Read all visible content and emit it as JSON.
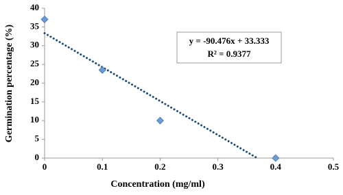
{
  "chart_data": {
    "type": "scatter",
    "xlabel": "Concentration (mg/ml)",
    "ylabel": "Germination percentage (%)",
    "series": [
      {
        "x": [
          0,
          0.1,
          0.2,
          0.4
        ],
        "values": [
          37,
          23.5,
          10,
          0
        ],
        "color": "#6b9bd2"
      }
    ],
    "trendline": {
      "x": [
        0,
        0.368
      ],
      "values": [
        33.333,
        0
      ],
      "color": "#1f4e79"
    },
    "annotations": [
      "y = -90.476x + 33.333",
      "R² = 0.9377"
    ],
    "xlim": [
      0,
      0.5
    ],
    "xticks": [
      0,
      0.1,
      0.2,
      0.3,
      0.4,
      0.5
    ],
    "ylim": [
      0,
      40
    ],
    "yticks": [
      0,
      5,
      10,
      15,
      20,
      25,
      30,
      35,
      40
    ],
    "grid": false
  }
}
